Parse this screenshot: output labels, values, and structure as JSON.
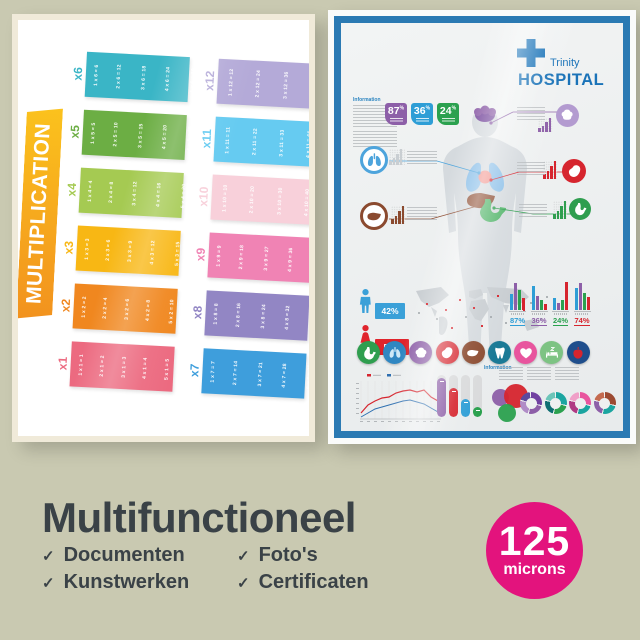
{
  "background_color": "#c9c9b1",
  "mult_poster": {
    "title": "MULTIPLICATION",
    "banner_colors": [
      "#fbc21d",
      "#f2921e"
    ],
    "columns": [
      {
        "tables": [
          {
            "label": "x6",
            "color": "#3ab5c6",
            "facts": [
              "1 x 6 = 6",
              "2 x 6 = 12",
              "3 x 6 = 18",
              "4 x 6 = 24",
              "5 x 6 = 30",
              "6 x 6 = 36",
              "7 x 6 = 42",
              "8 x 6 = 48",
              "9 x 6 = 54",
              "10 x 6 = 60",
              "11 x 6 = 66",
              "12 x 6 = 72"
            ]
          },
          {
            "label": "x5",
            "color": "#6cae44",
            "facts": [
              "1 x 5 = 5",
              "2 x 5 = 10",
              "3 x 5 = 15",
              "4 x 5 = 20",
              "5 x 5 = 25",
              "6 x 5 = 30",
              "7 x 5 = 35",
              "8 x 5 = 40",
              "9 x 5 = 45",
              "10 x 5 = 50",
              "11 x 5 = 55",
              "12 x 5 = 60"
            ]
          },
          {
            "label": "x4",
            "color": "#a5ca52",
            "facts": [
              "1 x 4 = 4",
              "2 x 4 = 8",
              "3 x 4 = 12",
              "4 x 4 = 16",
              "5 x 4 = 20",
              "6 x 4 = 24",
              "7 x 4 = 28",
              "8 x 4 = 32",
              "9 x 4 = 36",
              "10 x 4 = 40",
              "11 x 4 = 44",
              "12 x 4 = 48"
            ]
          },
          {
            "label": "x3",
            "color": "#f8b714",
            "facts": [
              "1 x 3 = 3",
              "2 x 3 = 6",
              "3 x 3 = 9",
              "4 x 3 = 12",
              "5 x 3 = 15",
              "6 x 3 = 18",
              "7 x 3 = 21",
              "8 x 3 = 24",
              "9 x 3 = 27",
              "10 x 3 = 30",
              "11 x 3 = 33",
              "12 x 3 = 36"
            ]
          },
          {
            "label": "x2",
            "color": "#f0871f",
            "facts": [
              "1 x 2 = 2",
              "2 x 2 = 4",
              "3 x 2 = 6",
              "4 x 2 = 8",
              "5 x 2 = 10",
              "6 x 2 = 12",
              "7 x 2 = 14",
              "8 x 2 = 16",
              "9 x 2 = 18",
              "10 x 2 = 20",
              "11 x 2 = 22",
              "12 x 2 = 24"
            ]
          },
          {
            "label": "x1",
            "color": "#ec6a80",
            "facts": [
              "1 x 1 = 1",
              "2 x 1 = 2",
              "3 x 1 = 3",
              "4 x 1 = 4",
              "5 x 1 = 5",
              "6 x 1 = 6",
              "7 x 1 = 7",
              "8 x 1 = 8",
              "9 x 1 = 9",
              "10 x 1 = 10",
              "11 x 1 = 11",
              "12 x 1 = 12"
            ]
          }
        ]
      },
      {
        "tables": [
          {
            "label": "x12",
            "color": "#b4aad8",
            "facts": [
              "1 x 12 = 12",
              "2 x 12 = 24",
              "3 x 12 = 36",
              "4 x 12 = 48",
              "5 x 12 = 60",
              "6 x 12 = 72",
              "7 x 12 = 84",
              "8 x 12 = 96",
              "9 x 12 = 108",
              "10 x 12 = 120",
              "11 x 12 = 132",
              "12 x 12 = 144"
            ]
          },
          {
            "label": "x11",
            "color": "#66cbf1",
            "facts": [
              "1 x 11 = 11",
              "2 x 11 = 22",
              "3 x 11 = 33",
              "4 x 11 = 44",
              "5 x 11 = 55",
              "6 x 11 = 66",
              "7 x 11 = 77",
              "8 x 11 = 88",
              "9 x 11 = 99",
              "10 x 11 = 110",
              "11 x 11 = 121",
              "12 x 11 = 132"
            ]
          },
          {
            "label": "x10",
            "color": "#f8d0da",
            "facts": [
              "1 x 10 = 10",
              "2 x 10 = 20",
              "3 x 10 = 30",
              "4 x 10 = 40",
              "5 x 10 = 50",
              "6 x 10 = 60",
              "7 x 10 = 70",
              "8 x 10 = 80",
              "9 x 10 = 90",
              "10 x 10 = 100",
              "11 x 10 = 110",
              "12 x 10 = 120"
            ]
          },
          {
            "label": "x9",
            "color": "#f083b4",
            "facts": [
              "1 x 9 = 9",
              "2 x 9 = 18",
              "3 x 9 = 27",
              "4 x 9 = 36",
              "5 x 9 = 45",
              "6 x 9 = 54",
              "7 x 9 = 63",
              "8 x 9 = 72",
              "9 x 9 = 81",
              "10 x 9 = 90",
              "11 x 9 = 99",
              "12 x 9 = 108"
            ]
          },
          {
            "label": "x8",
            "color": "#9286c4",
            "facts": [
              "1 x 8 = 8",
              "2 x 8 = 16",
              "3 x 8 = 24",
              "4 x 8 = 32",
              "5 x 8 = 40",
              "6 x 8 = 48",
              "7 x 8 = 56",
              "8 x 8 = 64",
              "9 x 8 = 72",
              "10 x 8 = 80",
              "11 x 8 = 88",
              "12 x 8 = 96"
            ]
          },
          {
            "label": "x7",
            "color": "#3e9edc",
            "facts": [
              "1 x 7 = 7",
              "2 x 7 = 14",
              "3 x 7 = 21",
              "4 x 7 = 28",
              "5 x 7 = 35",
              "6 x 7 = 42",
              "7 x 7 = 49",
              "8 x 7 = 56",
              "9 x 7 = 63",
              "10 x 7 = 70",
              "11 x 7 = 77",
              "12 x 7 = 84"
            ]
          }
        ]
      }
    ]
  },
  "hospital_poster": {
    "frame_color": "#2b7ab3",
    "brand": {
      "line1": "Trinity",
      "line2": "HOSPITAL",
      "color": "#1a73b8"
    },
    "info_heading": "Information",
    "top_badges": [
      {
        "value": "87",
        "unit": "%",
        "color": "#8d5fa8"
      },
      {
        "value": "36",
        "unit": "%",
        "color": "#2e9ed6"
      },
      {
        "value": "24",
        "unit": "%",
        "color": "#2ba14f"
      }
    ],
    "gender_stats": [
      {
        "gender": "male",
        "value": "42%",
        "color": "#3aa0d8"
      },
      {
        "gender": "female",
        "value": "58%",
        "color": "#e0242c"
      }
    ],
    "stat_groups": [
      {
        "label": "87%",
        "color": "#2e9ed6",
        "bars": [
          16,
          27,
          20,
          12
        ]
      },
      {
        "label": "36%",
        "color": "#8d5fa8",
        "bars": [
          24,
          14,
          10,
          6
        ]
      },
      {
        "label": "24%",
        "color": "#2ba14f",
        "bars": [
          12,
          7,
          10,
          28
        ]
      },
      {
        "label": "74%",
        "color": "#d6252e",
        "bars": [
          22,
          27,
          17,
          13
        ]
      }
    ],
    "bar_palette": [
      "#2e9ed6",
      "#8d5fa8",
      "#2ba14f",
      "#d6252e"
    ],
    "callouts": [
      {
        "organ": "lungs",
        "color": "#4da4dc",
        "style": "ring",
        "chart_color": "#c9ced2"
      },
      {
        "organ": "liver",
        "color": "#8b4a2f",
        "style": "ring",
        "chart_color": "#8b4a2f"
      },
      {
        "organ": "brain",
        "color": "#b39bd0",
        "style": "solid",
        "chart_color": "#8d5fa8"
      },
      {
        "organ": "heart-organ",
        "color": "#d6252e",
        "style": "solid",
        "chart_color": "#d6252e"
      },
      {
        "organ": "stomach",
        "color": "#2f9e4f",
        "style": "solid",
        "chart_color": "#2f9e4f"
      }
    ],
    "organ_icons": [
      {
        "name": "stomach",
        "color": "#2f9e4f",
        "icon_color": "#ffffff"
      },
      {
        "name": "lungs",
        "color": "#2f87c2",
        "icon_color": "#cde9f7"
      },
      {
        "name": "brain",
        "color": "#8d5fa8",
        "icon_color": "#ffffff"
      },
      {
        "name": "heart-organ",
        "color": "#d6252e",
        "icon_color": "#ffffff"
      },
      {
        "name": "liver",
        "color": "#8b4a2f",
        "icon_color": "#ffffff"
      },
      {
        "name": "tooth",
        "color": "#1b7a96",
        "icon_color": "#ffffff"
      },
      {
        "name": "heart",
        "color": "#e8559e",
        "icon_color": "#ffffff"
      },
      {
        "name": "bed",
        "color": "#7dc383",
        "icon_color": "#ffffff"
      },
      {
        "name": "apple",
        "color": "#1f4e8c",
        "icon_color": "#d6252e"
      }
    ],
    "pill_bars": [
      {
        "color": "#8d5fa8",
        "value": 92
      },
      {
        "color": "#d6252e",
        "value": 68
      },
      {
        "color": "#2e9ed6",
        "value": 44
      },
      {
        "color": "#2ba14f",
        "value": 24
      }
    ],
    "bubbles": [
      {
        "color": "#8d5fa8"
      },
      {
        "color": "#d6252e"
      },
      {
        "color": "#2ba14f"
      }
    ],
    "donuts": [
      {
        "segments": [
          "#7141a1",
          "#8d5fa8",
          "#b08cc7",
          "#5b4a9e"
        ]
      },
      {
        "segments": [
          "#1ba5a0",
          "#2ba14f",
          "#0f6e72",
          "#6cc5b9"
        ]
      },
      {
        "segments": [
          "#e8559e",
          "#1ba5a0",
          "#b03a84",
          "#f0a0c8"
        ]
      },
      {
        "segments": [
          "#9c4a32",
          "#1ba5a0",
          "#8d5fa8",
          "#c46a4f"
        ]
      }
    ],
    "line_chart_colors": {
      "series1": "#d6252e",
      "series2": "#2e6fb0"
    }
  },
  "footer": {
    "title": "Multifunctioneel",
    "check_glyph": "✓",
    "checklist": [
      "Documenten",
      "Kunstwerken",
      "Foto's",
      "Certificaten"
    ],
    "badge": {
      "value": "125",
      "unit": "microns",
      "color": "#e3137d"
    }
  }
}
